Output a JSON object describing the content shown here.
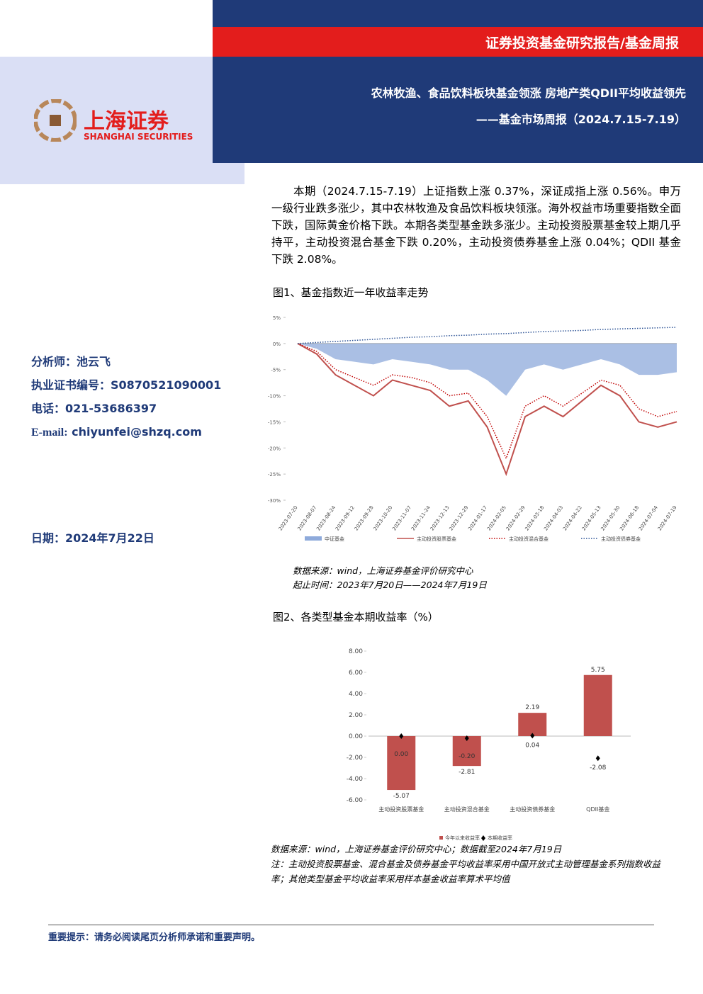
{
  "header": {
    "band": "证券投资基金研究报告/基金周报",
    "title": "农林牧渔、食品饮料板块基金领涨 房地产类QDII平均收益领先",
    "subtitle": "——基金市场周报（2024.7.15-7.19）"
  },
  "logo": {
    "name": "上海证券",
    "english": "SHANGHAI SECURITIES"
  },
  "analyst": {
    "name": "分析师：池云飞",
    "license": "执业证书编号：S0870521090001",
    "phone": "电话：021-53686397",
    "email_label": "E-mail:",
    "email": "chiyunfei@shzq.com",
    "date": "日期：2024年7月22日"
  },
  "summary": "本期（2024.7.15-7.19）上证指数上涨 0.37%，深证成指上涨 0.56%。申万一级行业跌多涨少，其中农林牧渔及食品饮料板块领涨。海外权益市场重要指数全面下跌，国际黄金价格下跌。本期各类型基金跌多涨少。主动投资股票基金较上期几乎持平，主动投资混合基金下跌 0.20%，主动投资债券基金上涨 0.04%；QDII 基金下跌 2.08%。",
  "figure1": {
    "caption": "图1、基金指数近一年收益率走势",
    "source": "数据来源：wind，上海证券基金评价研究中心",
    "period": "起止时间：2023年7月20日——2024年7月19日"
  },
  "figure2": {
    "caption": "图2、各类型基金本期收益率（%）",
    "source": "数据来源：wind，上海证券基金评价研究中心；数据截至2024年7月19日",
    "note": "注：主动投资股票基金、混合基金及债券基金平均收益率采用中国开放式主动管理基金系列指数收益率；其他类型基金平均收益率采用样本基金收益率算术平均值"
  },
  "footer": "重要提示：请务必阅读尾页分析师承诺和重要声明。",
  "chart_data": [
    {
      "type": "line",
      "categories": [
        "2023-07-20",
        "2023-08-07",
        "2023-08-24",
        "2023-09-12",
        "2023-09-28",
        "2023-10-20",
        "2023-11-07",
        "2023-11-24",
        "2023-12-13",
        "2023-12-29",
        "2024-01-17",
        "2024-02-05",
        "2024-02-29",
        "2024-03-18",
        "2024-04-03",
        "2024-04-22",
        "2024-05-13",
        "2024-05-30",
        "2024-06-18",
        "2024-07-04",
        "2024-07-19"
      ],
      "ylim": [
        -30,
        5
      ],
      "yticks": [
        {
          "value": 5,
          "label": "5%"
        },
        {
          "value": 0,
          "label": "0%"
        },
        {
          "value": -5,
          "label": "-5%"
        },
        {
          "value": -10,
          "label": "-10%"
        },
        {
          "value": -15,
          "label": "-15%"
        },
        {
          "value": -20,
          "label": "-20%"
        },
        {
          "value": -25,
          "label": "-25%"
        },
        {
          "value": -30,
          "label": "-30%"
        }
      ],
      "series": [
        {
          "name": "中证基金",
          "style": "area",
          "color": "#8eaadb",
          "values": [
            0,
            -1,
            -3,
            -3.5,
            -4,
            -3,
            -3.5,
            -4,
            -5,
            -5,
            -7,
            -10,
            -5,
            -4,
            -5,
            -4,
            -3,
            -4,
            -6,
            -6,
            -5.5
          ]
        },
        {
          "name": "主动投资股票基金",
          "style": "solid",
          "color": "#c0504d",
          "values": [
            0,
            -2,
            -6,
            -8,
            -10,
            -7,
            -8,
            -9,
            -12,
            -11,
            -16,
            -25,
            -14,
            -12,
            -14,
            -11,
            -8,
            -10,
            -15,
            -16,
            -15
          ]
        },
        {
          "name": "主动投资混合基金",
          "style": "dotted",
          "color": "#c00000",
          "values": [
            0,
            -1.5,
            -5,
            -6.5,
            -8,
            -6,
            -6.5,
            -7.5,
            -10,
            -9.5,
            -14,
            -22,
            -12,
            -10,
            -12,
            -9.5,
            -7,
            -8,
            -12.5,
            -14,
            -13
          ]
        },
        {
          "name": "主动投资债券基金",
          "style": "dotted",
          "color": "#2f5597",
          "values": [
            0,
            0.2,
            0.4,
            0.6,
            0.8,
            1,
            1.2,
            1.3,
            1.5,
            1.6,
            1.8,
            1.9,
            2.1,
            2.3,
            2.4,
            2.5,
            2.7,
            2.8,
            2.9,
            3.0,
            3.1
          ]
        }
      ]
    },
    {
      "type": "bar",
      "categories": [
        "主动投资股票基金",
        "主动投资混合基金",
        "主动投资债券基金",
        "QDII基金"
      ],
      "ylim": [
        -6,
        8
      ],
      "yticks": [
        {
          "value": 8,
          "label": "8.00"
        },
        {
          "value": 6,
          "label": "6.00"
        },
        {
          "value": 4,
          "label": "4.00"
        },
        {
          "value": 2,
          "label": "2.00"
        },
        {
          "value": 0,
          "label": "0.00"
        },
        {
          "value": -2,
          "label": "-2.00"
        },
        {
          "value": -4,
          "label": "-4.00"
        },
        {
          "value": -6,
          "label": "-6.00"
        }
      ],
      "series": [
        {
          "name": "今年以来收益率",
          "style": "bar",
          "color": "#c0504d",
          "values": [
            -5.07,
            -2.81,
            2.19,
            5.75
          ],
          "value_labels": [
            "-5.07",
            "-2.81",
            "2.19",
            "5.75"
          ]
        },
        {
          "name": "本期收益率",
          "style": "marker",
          "color": "#000000",
          "values": [
            0,
            -0.2,
            0.04,
            -2.08
          ],
          "value_labels": [
            "0.00",
            "-0.20",
            "0.04",
            "-2.08"
          ]
        }
      ]
    }
  ]
}
